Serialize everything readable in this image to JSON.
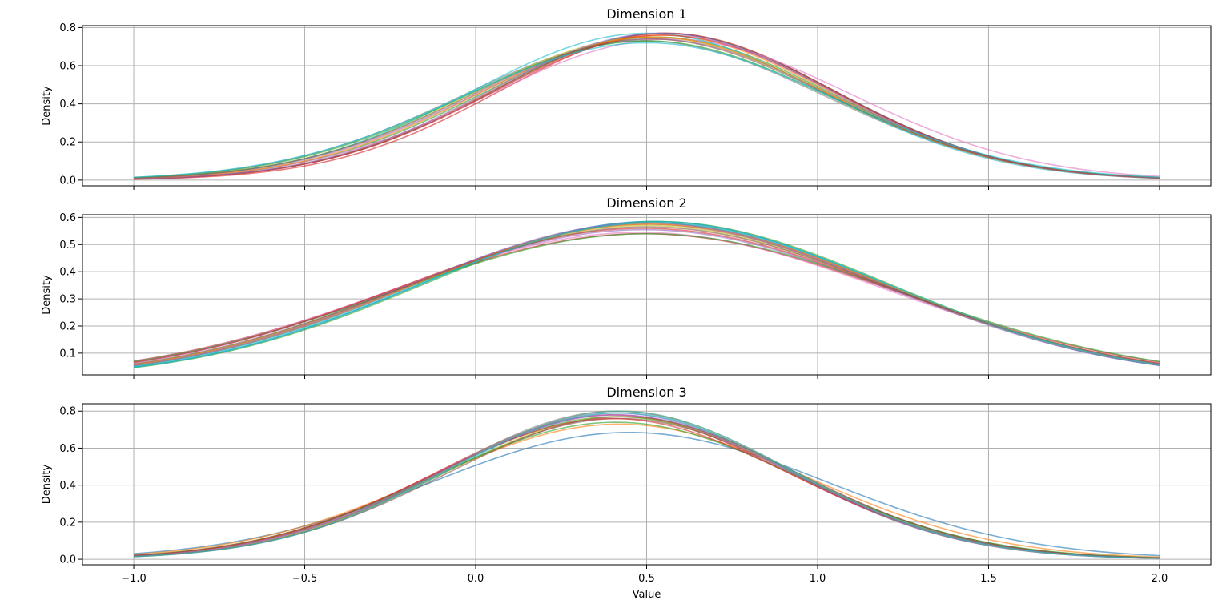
{
  "chart_data": [
    {
      "type": "line",
      "title": "Dimension 1",
      "xlabel": "",
      "ylabel": "Density",
      "xlim": [
        -1.15,
        2.15
      ],
      "ylim": [
        -0.03,
        0.81
      ],
      "xticks": [
        -1.0,
        -0.5,
        0.0,
        0.5,
        1.0,
        1.5,
        2.0
      ],
      "xtick_labels": [
        "",
        "",
        "",
        "",
        "",
        "",
        ""
      ],
      "yticks": [
        0.0,
        0.2,
        0.4,
        0.6,
        0.8
      ],
      "ytick_labels": [
        "0.0",
        "0.2",
        "0.4",
        "0.6",
        "0.8"
      ],
      "x_range": [
        -1.0,
        2.0
      ],
      "grid": true,
      "series": [
        {
          "peak": 0.77,
          "mean": 0.55,
          "sd": 0.5,
          "color": "#1f77b4"
        },
        {
          "peak": 0.76,
          "mean": 0.54,
          "sd": 0.5,
          "color": "#ff7f0e"
        },
        {
          "peak": 0.75,
          "mean": 0.53,
          "sd": 0.51,
          "color": "#2ca02c"
        },
        {
          "peak": 0.77,
          "mean": 0.56,
          "sd": 0.49,
          "color": "#d62728"
        },
        {
          "peak": 0.74,
          "mean": 0.52,
          "sd": 0.52,
          "color": "#9467bd"
        },
        {
          "peak": 0.77,
          "mean": 0.55,
          "sd": 0.5,
          "color": "#8c564b"
        },
        {
          "peak": 0.74,
          "mean": 0.57,
          "sd": 0.53,
          "color": "#e377c2"
        },
        {
          "peak": 0.73,
          "mean": 0.49,
          "sd": 0.53,
          "color": "#7f7f7f"
        },
        {
          "peak": 0.75,
          "mean": 0.51,
          "sd": 0.52,
          "color": "#bcbd22"
        },
        {
          "peak": 0.77,
          "mean": 0.5,
          "sd": 0.51,
          "color": "#17becf"
        },
        {
          "peak": 0.73,
          "mean": 0.5,
          "sd": 0.53,
          "color": "#2ca02c"
        },
        {
          "peak": 0.76,
          "mean": 0.55,
          "sd": 0.5,
          "color": "#d62728"
        },
        {
          "peak": 0.75,
          "mean": 0.52,
          "sd": 0.51,
          "color": "#ff7f0e"
        },
        {
          "peak": 0.77,
          "mean": 0.54,
          "sd": 0.5,
          "color": "#9467bd"
        },
        {
          "peak": 0.74,
          "mean": 0.51,
          "sd": 0.52,
          "color": "#8c564b"
        },
        {
          "peak": 0.72,
          "mean": 0.5,
          "sd": 0.54,
          "color": "#17becf"
        }
      ]
    },
    {
      "type": "line",
      "title": "Dimension 2",
      "xlabel": "",
      "ylabel": "Density",
      "xlim": [
        -1.15,
        2.15
      ],
      "ylim": [
        0.02,
        0.61
      ],
      "xticks": [
        -1.0,
        -0.5,
        0.0,
        0.5,
        1.0,
        1.5,
        2.0
      ],
      "xtick_labels": [
        "",
        "",
        "",
        "",
        "",
        "",
        ""
      ],
      "yticks": [
        0.1,
        0.2,
        0.3,
        0.4,
        0.5,
        0.6
      ],
      "ytick_labels": [
        "0.1",
        "0.2",
        "0.3",
        "0.4",
        "0.5",
        "0.6"
      ],
      "x_range": [
        -1.0,
        2.0
      ],
      "grid": true,
      "series": [
        {
          "peak": 0.585,
          "mean": 0.52,
          "sd": 0.68,
          "color": "#1f77b4"
        },
        {
          "peak": 0.58,
          "mean": 0.51,
          "sd": 0.69,
          "color": "#ff7f0e"
        },
        {
          "peak": 0.585,
          "mean": 0.53,
          "sd": 0.68,
          "color": "#2ca02c"
        },
        {
          "peak": 0.54,
          "mean": 0.49,
          "sd": 0.74,
          "color": "#d62728"
        },
        {
          "peak": 0.555,
          "mean": 0.49,
          "sd": 0.72,
          "color": "#9467bd"
        },
        {
          "peak": 0.575,
          "mean": 0.5,
          "sd": 0.7,
          "color": "#8c564b"
        },
        {
          "peak": 0.545,
          "mean": 0.48,
          "sd": 0.73,
          "color": "#e377c2"
        },
        {
          "peak": 0.58,
          "mean": 0.51,
          "sd": 0.69,
          "color": "#7f7f7f"
        },
        {
          "peak": 0.57,
          "mean": 0.5,
          "sd": 0.7,
          "color": "#bcbd22"
        },
        {
          "peak": 0.585,
          "mean": 0.52,
          "sd": 0.68,
          "color": "#17becf"
        },
        {
          "peak": 0.54,
          "mean": 0.5,
          "sd": 0.74,
          "color": "#2ca02c"
        },
        {
          "peak": 0.56,
          "mean": 0.49,
          "sd": 0.72,
          "color": "#d62728"
        },
        {
          "peak": 0.575,
          "mean": 0.51,
          "sd": 0.7,
          "color": "#ff7f0e"
        },
        {
          "peak": 0.58,
          "mean": 0.5,
          "sd": 0.69,
          "color": "#9467bd"
        },
        {
          "peak": 0.565,
          "mean": 0.5,
          "sd": 0.71,
          "color": "#8c564b"
        },
        {
          "peak": 0.58,
          "mean": 0.52,
          "sd": 0.69,
          "color": "#17becf"
        }
      ]
    },
    {
      "type": "line",
      "title": "Dimension 3",
      "xlabel": "Value",
      "ylabel": "Density",
      "xlim": [
        -1.15,
        2.15
      ],
      "ylim": [
        -0.03,
        0.84
      ],
      "xticks": [
        -1.0,
        -0.5,
        0.0,
        0.5,
        1.0,
        1.5,
        2.0
      ],
      "xtick_labels": [
        "−1.0",
        "−0.5",
        "0.0",
        "0.5",
        "1.0",
        "1.5",
        "2.0"
      ],
      "yticks": [
        0.0,
        0.2,
        0.4,
        0.6,
        0.8
      ],
      "ytick_labels": [
        "0.0",
        "0.2",
        "0.4",
        "0.6",
        "0.8"
      ],
      "x_range": [
        -1.0,
        2.0
      ],
      "grid": true,
      "series": [
        {
          "peak": 0.685,
          "mean": 0.45,
          "sd": 0.58,
          "color": "#1f77b4"
        },
        {
          "peak": 0.73,
          "mean": 0.42,
          "sd": 0.55,
          "color": "#ff7f0e"
        },
        {
          "peak": 0.77,
          "mean": 0.41,
          "sd": 0.52,
          "color": "#2ca02c"
        },
        {
          "peak": 0.78,
          "mean": 0.4,
          "sd": 0.51,
          "color": "#d62728"
        },
        {
          "peak": 0.79,
          "mean": 0.41,
          "sd": 0.5,
          "color": "#9467bd"
        },
        {
          "peak": 0.76,
          "mean": 0.42,
          "sd": 0.52,
          "color": "#8c564b"
        },
        {
          "peak": 0.78,
          "mean": 0.41,
          "sd": 0.51,
          "color": "#e377c2"
        },
        {
          "peak": 0.8,
          "mean": 0.41,
          "sd": 0.5,
          "color": "#7f7f7f"
        },
        {
          "peak": 0.77,
          "mean": 0.42,
          "sd": 0.51,
          "color": "#bcbd22"
        },
        {
          "peak": 0.79,
          "mean": 0.42,
          "sd": 0.5,
          "color": "#17becf"
        },
        {
          "peak": 0.74,
          "mean": 0.41,
          "sd": 0.53,
          "color": "#2ca02c"
        },
        {
          "peak": 0.76,
          "mean": 0.4,
          "sd": 0.52,
          "color": "#d62728"
        },
        {
          "peak": 0.8,
          "mean": 0.42,
          "sd": 0.5,
          "color": "#ff7f0e"
        },
        {
          "peak": 0.78,
          "mean": 0.41,
          "sd": 0.51,
          "color": "#9467bd"
        },
        {
          "peak": 0.77,
          "mean": 0.43,
          "sd": 0.51,
          "color": "#8c564b"
        },
        {
          "peak": 0.8,
          "mean": 0.42,
          "sd": 0.5,
          "color": "#17becf"
        }
      ]
    }
  ]
}
